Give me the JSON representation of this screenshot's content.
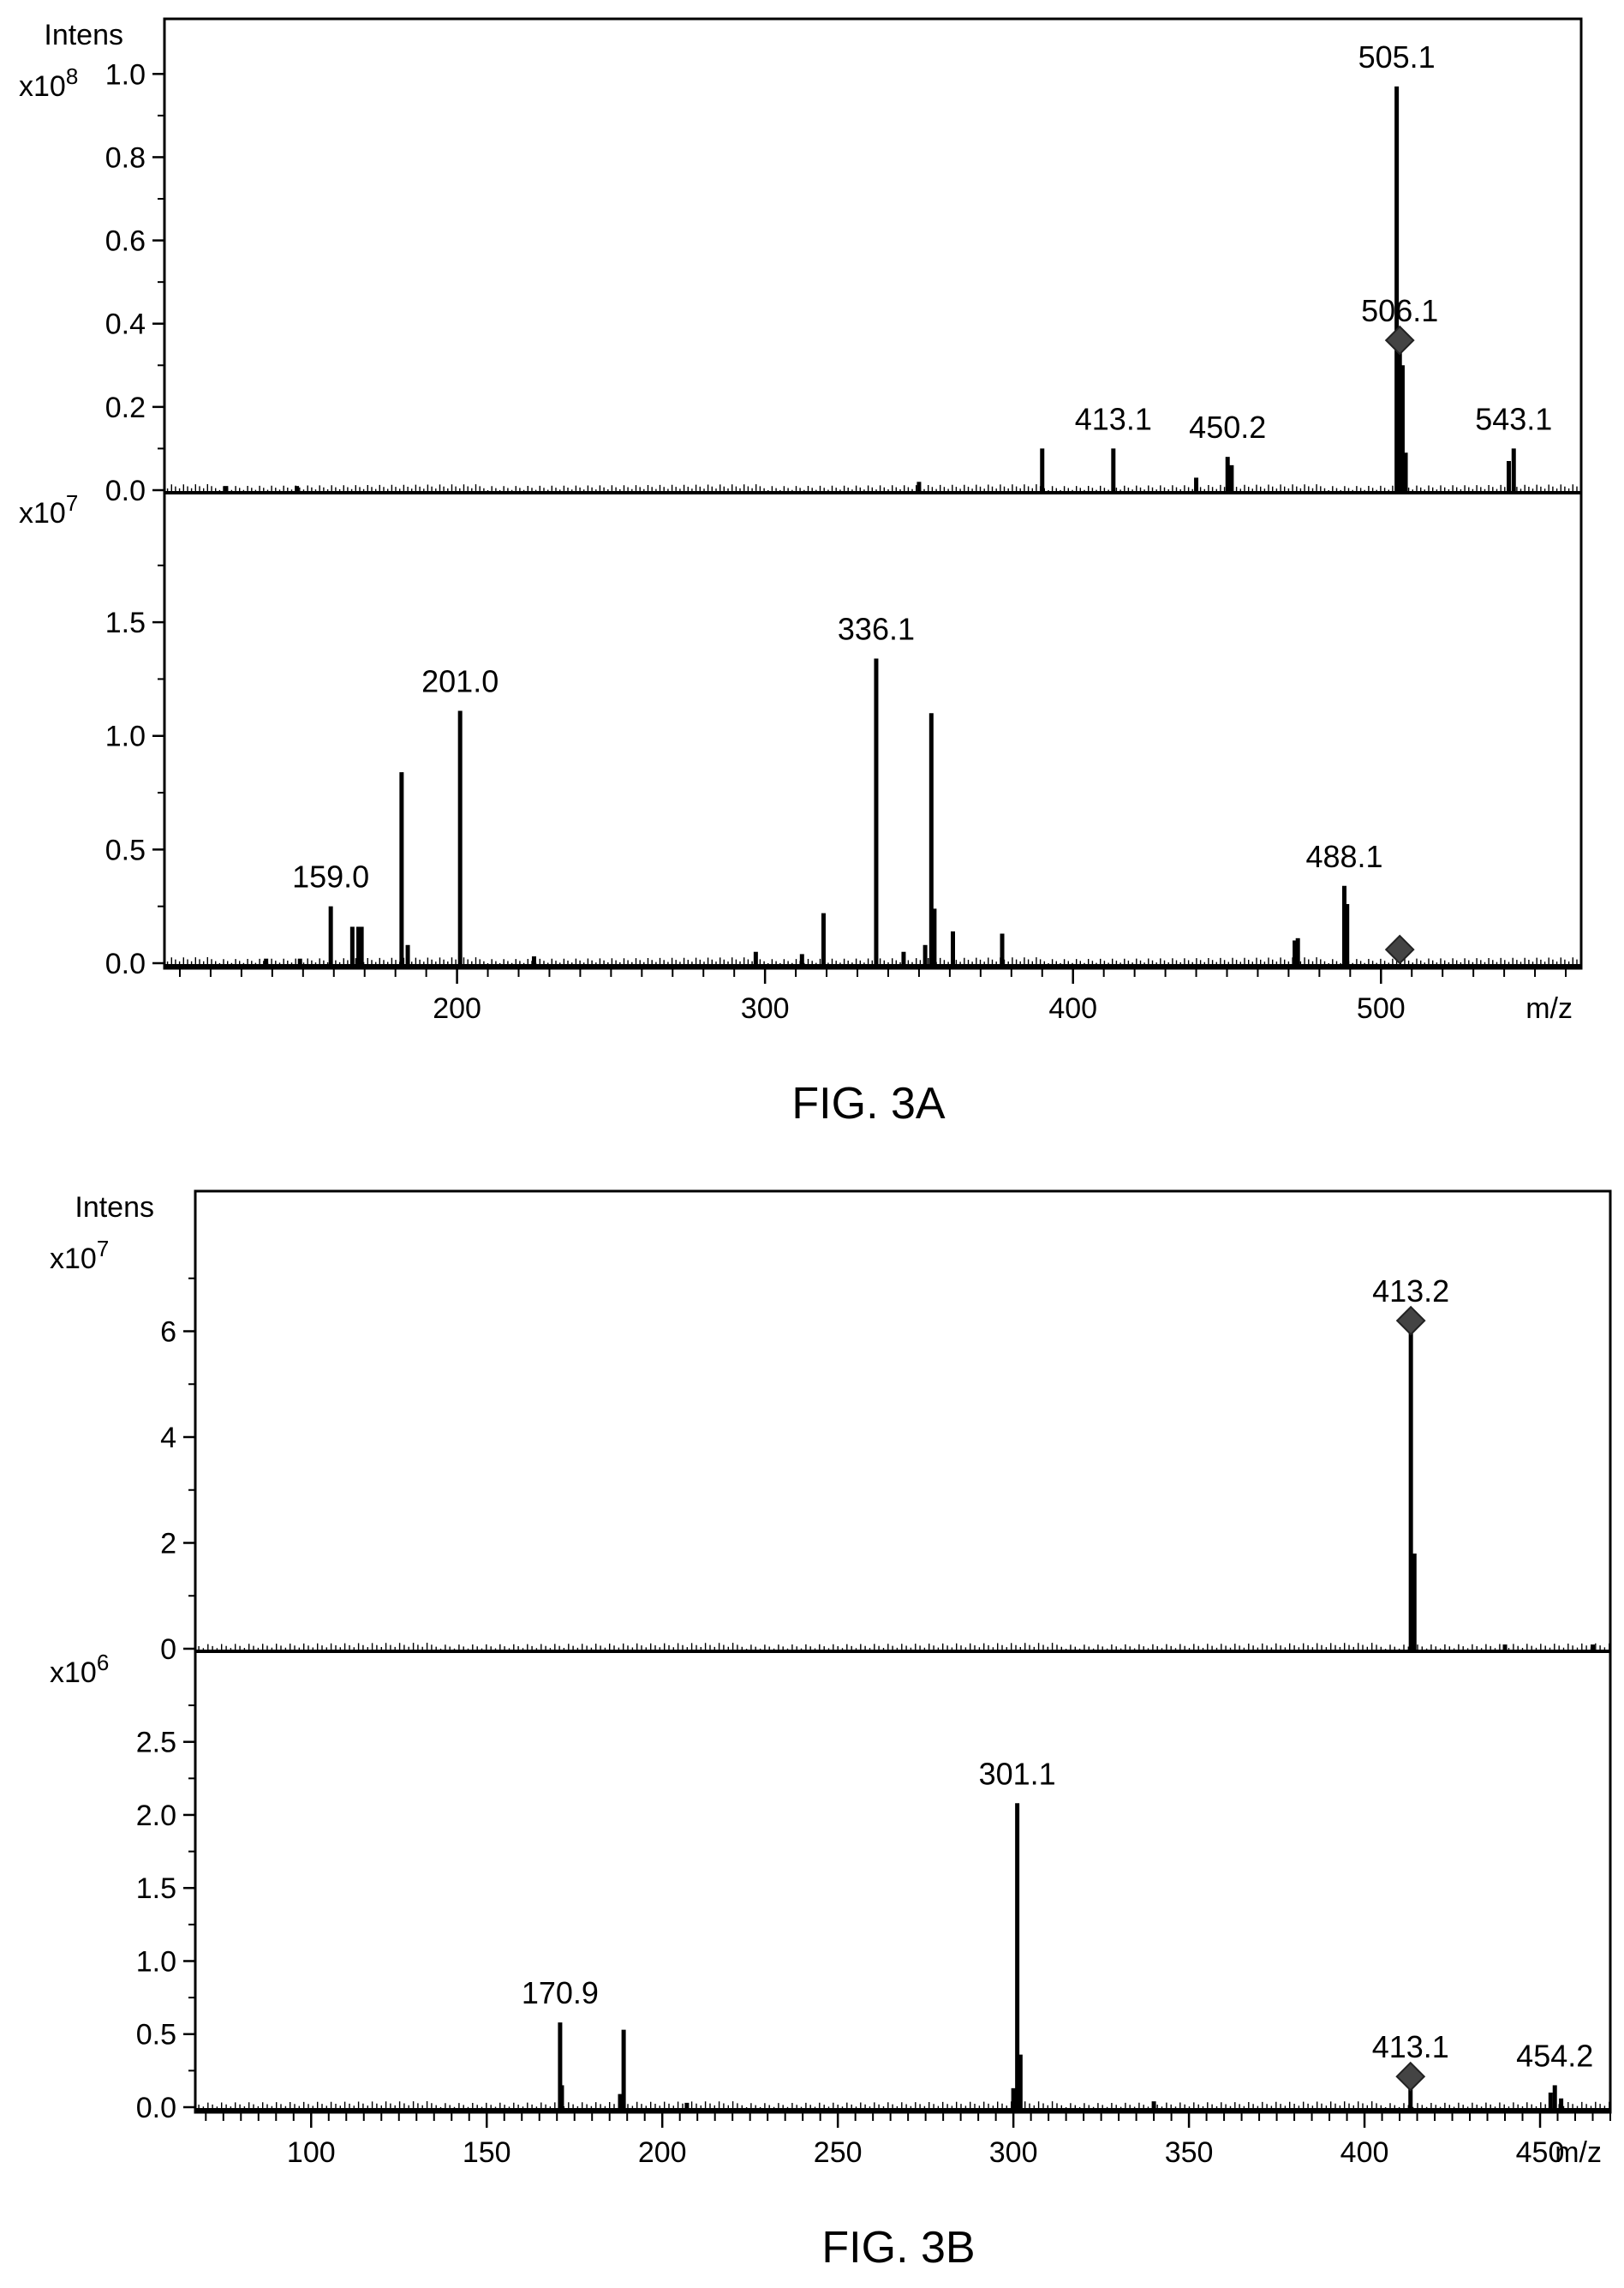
{
  "chart_data": [
    {
      "type": "bar",
      "caption": "FIG. 3A",
      "ylabel": "Intens",
      "xlabel": "m/z",
      "xlim": [
        105,
        565
      ],
      "x_ticks": [
        200,
        300,
        400,
        500
      ],
      "panels": [
        {
          "scale_label": "x10",
          "scale_exponent": "8",
          "ylim": [
            0,
            1.05
          ],
          "y_ticks": [
            "1.0",
            "0.8",
            "0.6",
            "0.4",
            "0.2",
            "0.0"
          ],
          "peaks": [
            {
              "x": 125,
              "y": 0.01
            },
            {
              "x": 148,
              "y": 0.01
            },
            {
              "x": 350,
              "y": 0.02
            },
            {
              "x": 390,
              "y": 0.1
            },
            {
              "x": 413.1,
              "y": 0.1,
              "label": "413.1"
            },
            {
              "x": 440,
              "y": 0.03
            },
            {
              "x": 450.2,
              "y": 0.08,
              "label": "450.2"
            },
            {
              "x": 451.5,
              "y": 0.06
            },
            {
              "x": 505.1,
              "y": 0.97,
              "label": "505.1"
            },
            {
              "x": 506.1,
              "y": 0.36,
              "label": "506.1"
            },
            {
              "x": 507.0,
              "y": 0.3
            },
            {
              "x": 508.0,
              "y": 0.09
            },
            {
              "x": 541.5,
              "y": 0.07
            },
            {
              "x": 543.1,
              "y": 0.1,
              "label": "543.1"
            }
          ],
          "precursor": {
            "x": 506.1,
            "y": 0.36
          }
        },
        {
          "scale_label": "x10",
          "scale_exponent": "7",
          "ylim": [
            0,
            1.9
          ],
          "y_ticks": [
            "1.5",
            "1.0",
            "0.5",
            "0.0"
          ],
          "peaks": [
            {
              "x": 138,
              "y": 0.02
            },
            {
              "x": 149,
              "y": 0.02
            },
            {
              "x": 159.0,
              "y": 0.25,
              "label": "159.0"
            },
            {
              "x": 166,
              "y": 0.16
            },
            {
              "x": 168,
              "y": 0.16
            },
            {
              "x": 169,
              "y": 0.16
            },
            {
              "x": 182,
              "y": 0.84
            },
            {
              "x": 184,
              "y": 0.08
            },
            {
              "x": 201.0,
              "y": 1.11,
              "label": "201.0"
            },
            {
              "x": 225,
              "y": 0.03
            },
            {
              "x": 297,
              "y": 0.05
            },
            {
              "x": 312,
              "y": 0.04
            },
            {
              "x": 319,
              "y": 0.22
            },
            {
              "x": 336.1,
              "y": 1.34,
              "label": "336.1"
            },
            {
              "x": 345,
              "y": 0.05
            },
            {
              "x": 352,
              "y": 0.08
            },
            {
              "x": 354,
              "y": 1.1
            },
            {
              "x": 355,
              "y": 0.24
            },
            {
              "x": 361,
              "y": 0.14
            },
            {
              "x": 377,
              "y": 0.13
            },
            {
              "x": 472,
              "y": 0.1
            },
            {
              "x": 473,
              "y": 0.11
            },
            {
              "x": 488.1,
              "y": 0.34,
              "label": "488.1"
            },
            {
              "x": 489,
              "y": 0.26
            }
          ],
          "precursor": {
            "x": 506.1,
            "y": 0.06
          }
        }
      ]
    },
    {
      "type": "bar",
      "caption": "FIG. 3B",
      "ylabel": "Intens",
      "xlabel": "m/z",
      "xlim": [
        67,
        470
      ],
      "x_ticks": [
        100,
        150,
        200,
        250,
        300,
        350,
        400,
        450
      ],
      "panels": [
        {
          "scale_label": "x10",
          "scale_exponent": "7",
          "ylim": [
            0,
            8.0
          ],
          "y_ticks": [
            "6",
            "4",
            "2",
            "0"
          ],
          "peaks": [
            {
              "x": 413.2,
              "y": 6.2,
              "label": "413.2"
            },
            {
              "x": 414.2,
              "y": 1.8
            },
            {
              "x": 440,
              "y": 0.08
            },
            {
              "x": 465,
              "y": 0.08
            }
          ],
          "precursor": {
            "x": 413.2,
            "y": 6.2
          }
        },
        {
          "scale_label": "x10",
          "scale_exponent": "6",
          "ylim": [
            0,
            2.85
          ],
          "y_ticks": [
            "2.5",
            "2.0",
            "1.5",
            "1.0",
            "0.5",
            "0.0"
          ],
          "peaks": [
            {
              "x": 170.9,
              "y": 0.58,
              "label": "170.9"
            },
            {
              "x": 171.4,
              "y": 0.15
            },
            {
              "x": 188,
              "y": 0.09
            },
            {
              "x": 189,
              "y": 0.53
            },
            {
              "x": 207,
              "y": 0.03
            },
            {
              "x": 300,
              "y": 0.13
            },
            {
              "x": 301.1,
              "y": 2.08,
              "label": "301.1"
            },
            {
              "x": 302,
              "y": 0.36
            },
            {
              "x": 340,
              "y": 0.04
            },
            {
              "x": 413.1,
              "y": 0.21,
              "label": "413.1"
            },
            {
              "x": 453,
              "y": 0.1
            },
            {
              "x": 454.2,
              "y": 0.15,
              "label": "454.2"
            },
            {
              "x": 456,
              "y": 0.06
            }
          ],
          "precursor": {
            "x": 413.1,
            "y": 0.21
          }
        }
      ]
    }
  ]
}
